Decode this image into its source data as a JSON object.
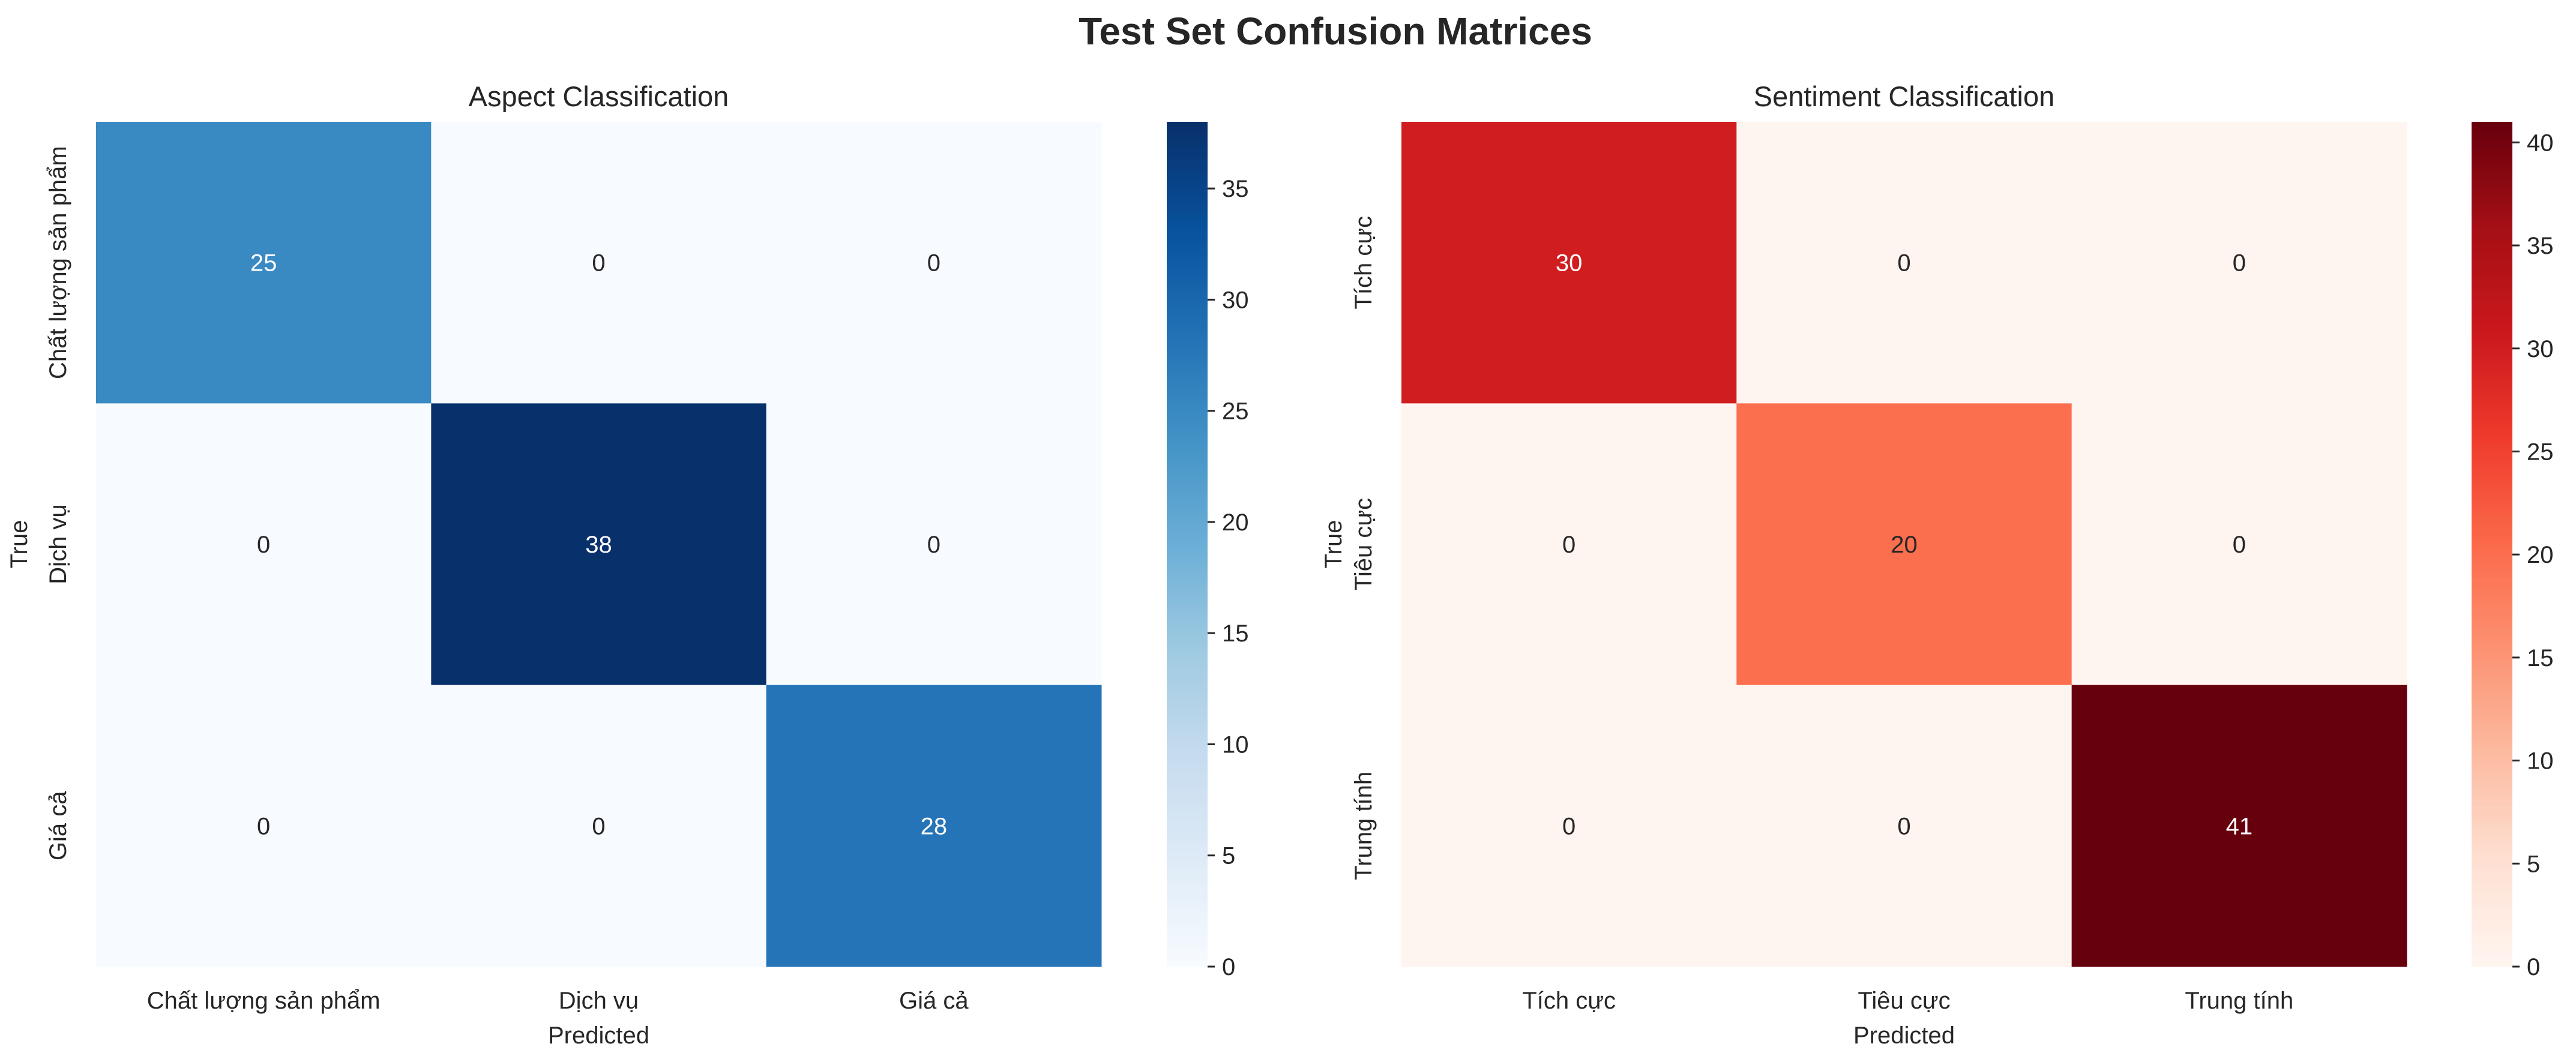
{
  "figure": {
    "title": "Test Set Confusion Matrices"
  },
  "colors": {
    "text": "#262626",
    "background": "#ffffff",
    "tick_mark": "#262626",
    "blues_scale": [
      "#f7fbff",
      "#deebf7",
      "#c6dbef",
      "#9ecae1",
      "#6baed6",
      "#4292c6",
      "#2171b5",
      "#08519c",
      "#08306b"
    ],
    "reds_scale": [
      "#fff5f0",
      "#fee0d2",
      "#fcbba1",
      "#fc9272",
      "#fb6a4a",
      "#ef3b2c",
      "#cb181d",
      "#a50f15",
      "#67000d"
    ],
    "annot_light": "#ffffff",
    "annot_dark": "#262626"
  },
  "chart_data": [
    {
      "type": "heatmap",
      "title": "Aspect Classification",
      "xlabel": "Predicted",
      "ylabel": "True",
      "x_categories": [
        "Chất lượng sản phẩm",
        "Dịch vụ",
        "Giá cả"
      ],
      "y_categories": [
        "Chất lượng sản phẩm",
        "Dịch vụ",
        "Giá cả"
      ],
      "values": [
        [
          25,
          0,
          0
        ],
        [
          0,
          38,
          0
        ],
        [
          0,
          0,
          28
        ]
      ],
      "colormap": "Blues",
      "colorbar": {
        "min": 0,
        "max": 38,
        "ticks": [
          0,
          5,
          10,
          15,
          20,
          25,
          30,
          35
        ]
      },
      "grid": false
    },
    {
      "type": "heatmap",
      "title": "Sentiment Classification",
      "xlabel": "Predicted",
      "ylabel": "True",
      "x_categories": [
        "Tích cực",
        "Tiêu cực",
        "Trung tính"
      ],
      "y_categories": [
        "Tích cực",
        "Tiêu cực",
        "Trung tính"
      ],
      "values": [
        [
          30,
          0,
          0
        ],
        [
          0,
          20,
          0
        ],
        [
          0,
          0,
          41
        ]
      ],
      "colormap": "Reds",
      "colorbar": {
        "min": 0,
        "max": 41,
        "ticks": [
          0,
          5,
          10,
          15,
          20,
          25,
          30,
          35,
          40
        ]
      },
      "grid": false
    }
  ]
}
